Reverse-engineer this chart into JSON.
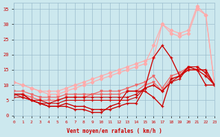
{
  "x": [
    0,
    1,
    2,
    3,
    4,
    5,
    6,
    7,
    8,
    9,
    10,
    11,
    12,
    13,
    14,
    15,
    16,
    17,
    18,
    19,
    20,
    21,
    22,
    23
  ],
  "line_light1": [
    11,
    10,
    9,
    8,
    8,
    8,
    9,
    10,
    11,
    12,
    13,
    14,
    15,
    16,
    17,
    18,
    19,
    30,
    28,
    27,
    28,
    36,
    33,
    10
  ],
  "line_light2": [
    11,
    10,
    9,
    8,
    7,
    7,
    8,
    9,
    10,
    11,
    12,
    13,
    14,
    15,
    16,
    17,
    23,
    30,
    27,
    26,
    27,
    35,
    33,
    10
  ],
  "line_mid1": [
    8,
    8,
    7,
    6,
    6,
    6,
    7,
    7,
    7,
    7,
    8,
    8,
    8,
    9,
    10,
    11,
    13,
    9,
    13,
    14,
    16,
    16,
    14,
    10
  ],
  "line_mid2": [
    7,
    7,
    6,
    5,
    5,
    5,
    6,
    6,
    6,
    7,
    7,
    7,
    7,
    8,
    8,
    10,
    11,
    8,
    12,
    13,
    15,
    15,
    13,
    10
  ],
  "line_dark1": [
    7,
    7,
    5,
    4,
    3,
    3,
    4,
    3,
    3,
    2,
    2,
    2,
    3,
    4,
    4,
    9,
    19,
    23,
    19,
    13,
    16,
    15,
    10,
    10
  ],
  "line_dark2": [
    7,
    7,
    5,
    4,
    3,
    3,
    3,
    2,
    2,
    1,
    1,
    3,
    4,
    8,
    8,
    8,
    6,
    3,
    12,
    13,
    15,
    15,
    15,
    10
  ],
  "line_dark3": [
    7,
    6,
    5,
    4,
    4,
    4,
    5,
    5,
    5,
    5,
    5,
    5,
    5,
    5,
    6,
    9,
    10,
    8,
    11,
    12,
    16,
    16,
    14,
    10
  ],
  "line_dark4": [
    6,
    6,
    5,
    5,
    4,
    5,
    6,
    6,
    6,
    6,
    6,
    6,
    6,
    6,
    7,
    9,
    10,
    8,
    11,
    13,
    16,
    15,
    13,
    10
  ],
  "bg_color": "#cce8ee",
  "grid_color": "#99bbcc",
  "line_color_dark": "#cc0000",
  "line_color_mid": "#ee6666",
  "line_color_light": "#ffaaaa",
  "xlabel": "Vent moyen/en rafales ( km/h )",
  "ylim": [
    0,
    37
  ],
  "xlim": [
    0,
    23
  ]
}
